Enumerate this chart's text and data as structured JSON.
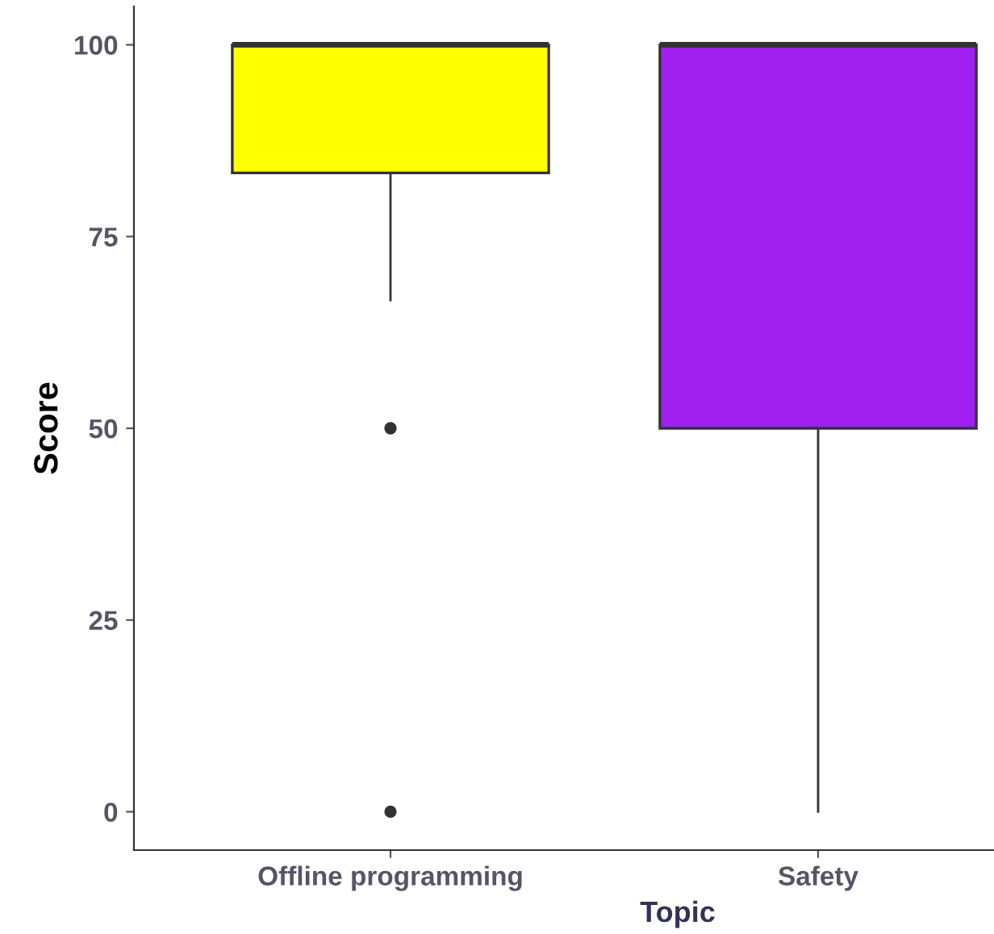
{
  "chart_data": {
    "type": "box",
    "xlabel": "Topic",
    "ylabel": "Score",
    "categories": [
      "Offline programming",
      "Safety"
    ],
    "colors": [
      "#ffff00",
      "#a020f0"
    ],
    "boxes": [
      {
        "low": 66.7,
        "q1": 83.3,
        "median": 100,
        "q3": 100,
        "high": 100,
        "outliers": [
          50,
          0
        ]
      },
      {
        "low": 0,
        "q1": 50,
        "median": 100,
        "q3": 100,
        "high": 100
      }
    ],
    "ylim": [
      -5,
      105
    ],
    "yticks": [
      0,
      25,
      50,
      75,
      100
    ]
  }
}
